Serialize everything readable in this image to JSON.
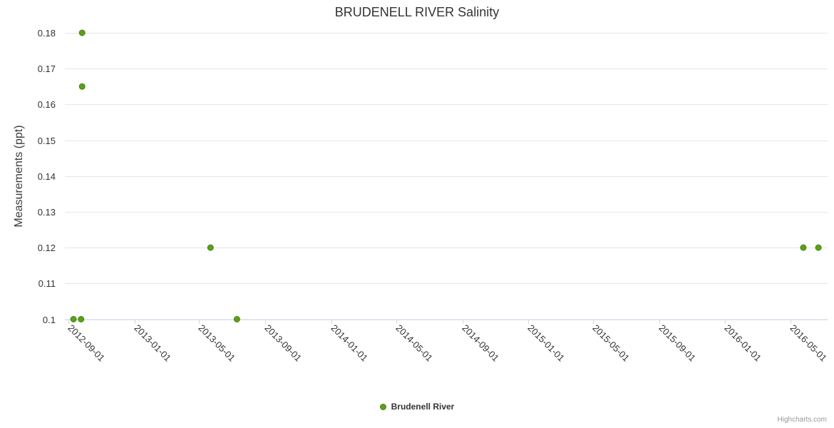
{
  "chart_data": {
    "type": "scatter",
    "title": "BRUDENELL RIVER Salinity",
    "xlabel": "",
    "ylabel": "Measurements (ppt)",
    "x_type": "datetime",
    "x_tick_rotation": 45,
    "grid": "horizontal-only",
    "legend_position": "bottom-center",
    "x_range": [
      "2012-08-25",
      "2016-07-09"
    ],
    "ylim": [
      0.1,
      0.18
    ],
    "x_ticks": [
      "2012-09-01",
      "2013-01-01",
      "2013-05-01",
      "2013-09-01",
      "2014-01-01",
      "2014-05-01",
      "2014-09-01",
      "2015-01-01",
      "2015-05-01",
      "2015-09-01",
      "2016-01-01",
      "2016-05-01"
    ],
    "y_ticks": [
      0.1,
      0.11,
      0.12,
      0.13,
      0.14,
      0.15,
      0.16,
      0.17,
      0.18
    ],
    "series": [
      {
        "name": "Brudenell River",
        "color": "#5aa018",
        "marker_line_color": "#478311",
        "points": [
          [
            "2012-09-10",
            0.1
          ],
          [
            "2012-09-24",
            0.1
          ],
          [
            "2012-09-26",
            0.18
          ],
          [
            "2012-09-26",
            0.165
          ],
          [
            "2013-05-22",
            0.12
          ],
          [
            "2013-07-10",
            0.1
          ],
          [
            "2016-05-25",
            0.12
          ],
          [
            "2016-06-22",
            0.12
          ]
        ]
      }
    ]
  },
  "colors": {
    "grid": "#e6e6e6",
    "axis_line": "#ccd6eb",
    "tick_label": "#333333",
    "title": "#333333",
    "credits": "#999999"
  },
  "credits": {
    "text": "Highcharts.com"
  }
}
